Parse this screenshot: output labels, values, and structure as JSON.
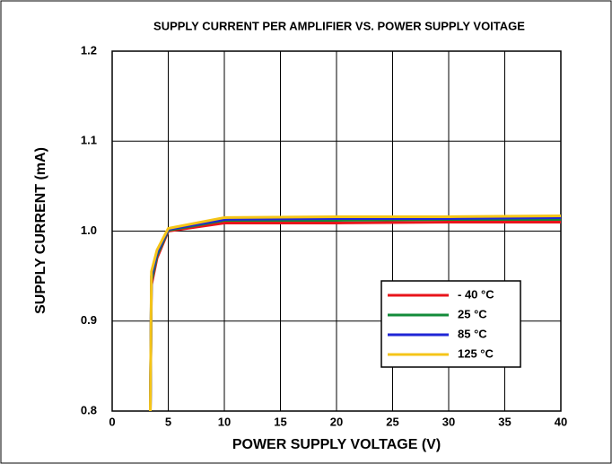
{
  "chart_data": {
    "type": "line",
    "title": "SUPPLY CURRENT PER AMPLIFIER VS. POWER SUPPLY VOITAGE",
    "x_label": "POWER SUPPLY VOLTAGE (V)",
    "y_label": "SUPPLY CURRENT (mA)",
    "x": [
      3.4,
      3.5,
      4,
      5,
      10,
      20,
      30,
      40
    ],
    "series": [
      {
        "name": "- 40 °C",
        "color": "#e8141b",
        "values": [
          0.8,
          0.94,
          0.97,
          1.0,
          1.009,
          1.009,
          1.01,
          1.01
        ]
      },
      {
        "name": "25 °C",
        "color": "#138b3a",
        "values": [
          0.8,
          0.945,
          0.973,
          1.001,
          1.012,
          1.012,
          1.013,
          1.013
        ]
      },
      {
        "name": "85 °C",
        "color": "#1f26d6",
        "values": [
          0.8,
          0.95,
          0.976,
          1.002,
          1.013,
          1.014,
          1.014,
          1.015
        ]
      },
      {
        "name": "125 °C",
        "color": "#f5c518",
        "values": [
          0.8,
          0.955,
          0.979,
          1.003,
          1.015,
          1.016,
          1.016,
          1.017
        ]
      }
    ],
    "xlim": [
      0,
      40
    ],
    "xticks": [
      0,
      5,
      10,
      15,
      20,
      25,
      30,
      35,
      40
    ],
    "ylim": [
      0.8,
      1.2
    ],
    "yticks": [
      0.8,
      0.9,
      {
        "value": 1,
        "label": "1.0"
      },
      1.1,
      1.2
    ],
    "grid": true,
    "legend_position": "lower right"
  }
}
